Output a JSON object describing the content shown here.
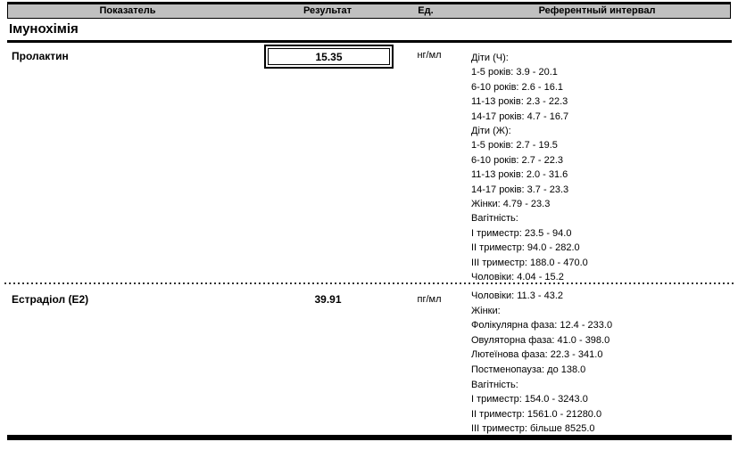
{
  "table_header": {
    "col_indicator": "Показатель",
    "col_result": "Результат",
    "col_unit": "Ед.",
    "col_reference": "Референтный интервал"
  },
  "section_title": "Імунохімія",
  "rows": [
    {
      "name": "Пролактин",
      "result": "15.35",
      "unit": "нг/мл",
      "result_boxed": true,
      "reference_lines": [
        "Діти (Ч):",
        "1-5 років: 3.9 - 20.1",
        "6-10 років: 2.6 - 16.1",
        "11-13 років: 2.3 - 22.3",
        "14-17 років: 4.7 - 16.7",
        "Діти (Ж):",
        "1-5 років: 2.7 - 19.5",
        "6-10 років: 2.7 - 22.3",
        "11-13 років: 2.0 - 31.6",
        "14-17 років: 3.7 - 23.3",
        "Жінки: 4.79 - 23.3",
        "Вагітність:",
        "I триместр: 23.5 - 94.0",
        "II триместр: 94.0 - 282.0",
        "III триместр: 188.0 - 470.0",
        "Чоловіки: 4.04 - 15.2"
      ]
    },
    {
      "name": "Естрадіол (Е2)",
      "result": "39.91",
      "unit": "пг/мл",
      "result_boxed": false,
      "reference_lines": [
        "Чоловіки: 11.3 - 43.2",
        "Жінки:",
        "Фолікулярна фаза: 12.4 - 233.0",
        "Овуляторна фаза: 41.0 - 398.0",
        "Лютеїнова фаза: 22.3 - 341.0",
        "Постменопауза: до 138.0",
        "Вагітність:",
        "I триместр: 154.0 - 3243.0",
        "II триместр: 1561.0 - 21280.0",
        "III триместр: більше 8525.0"
      ]
    }
  ],
  "colors": {
    "header_bg": "#c0c0c0",
    "rule": "#000000"
  }
}
